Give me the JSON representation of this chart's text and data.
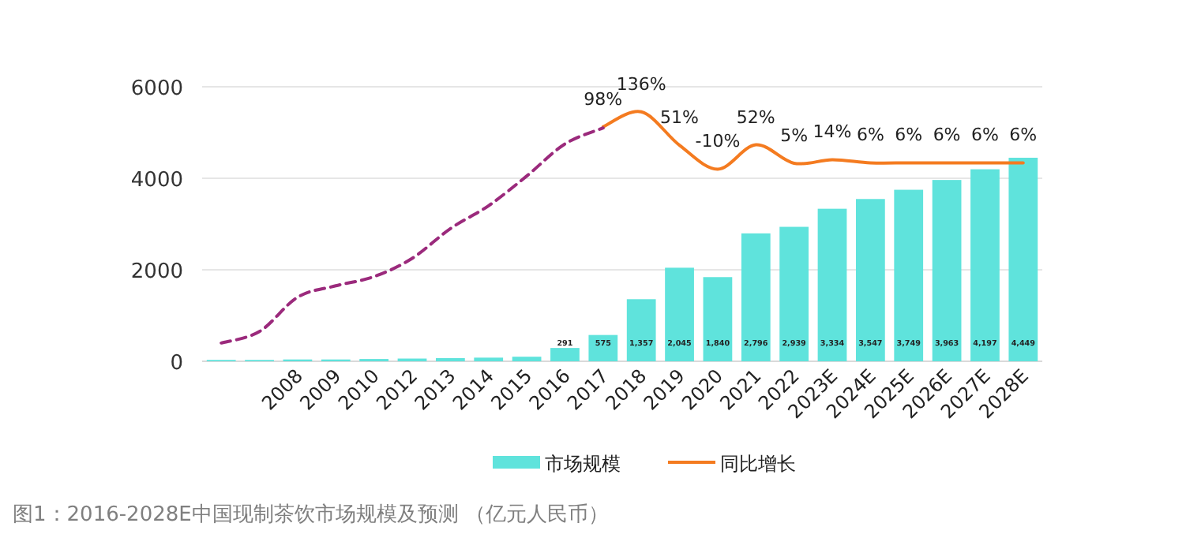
{
  "chart_data": {
    "type": "bar",
    "categories": [
      null,
      null,
      "2008",
      "2009",
      "2010",
      "2012",
      "2013",
      "2014",
      "2015",
      "2016",
      "2017",
      "2018",
      "2019",
      "2020",
      "2021",
      "2022",
      "2023E",
      "2024E",
      "2025E",
      "2026E",
      "2027E",
      "2028E"
    ],
    "ylim": [
      0,
      6000
    ],
    "yticks": [
      0,
      2000,
      4000,
      6000
    ],
    "y2lim": [
      -500,
      200
    ],
    "grid": "y",
    "legend": "bottom",
    "annotations": [
      "图1：2016-2028E中国现制茶饮市场规模及预测 （亿元人民币）"
    ],
    "series": [
      {
        "name": "市场规模",
        "color": "#5fe3dc",
        "values": [
          30,
          30,
          40,
          40,
          50,
          60,
          70,
          80,
          100,
          291,
          575,
          1357,
          2045,
          1840,
          2796,
          2939,
          3334,
          3547,
          3749,
          3963,
          4197,
          4449
        ],
        "value_labels": [
          null,
          null,
          null,
          null,
          null,
          null,
          null,
          null,
          null,
          "291",
          "575",
          "1,357",
          "2,045",
          "1,840",
          "2,796",
          "2,939",
          "3,334",
          "3,547",
          "3,749",
          "3,963",
          "4,197",
          "4,449"
        ]
      },
      {
        "type": "line",
        "name": "同比增长",
        "color": "#f47b20",
        "axis": "y2",
        "values": [
          null,
          null,
          null,
          null,
          null,
          null,
          null,
          null,
          null,
          null,
          98,
          136,
          51,
          -10,
          52,
          5,
          14,
          6,
          6,
          6,
          6,
          6
        ],
        "value_labels": [
          null,
          null,
          null,
          null,
          null,
          null,
          null,
          null,
          null,
          null,
          "98%",
          "136%",
          "51%",
          "-10%",
          "52%",
          "5%",
          "14%",
          "6%",
          "6%",
          "6%",
          "6%",
          "6%"
        ]
      },
      {
        "type": "line",
        "color": "#9b2a7c",
        "line_style": "dashed",
        "values": [
          400,
          650,
          1400,
          1650,
          1850,
          2250,
          2900,
          3400,
          4050,
          4750,
          5100,
          null,
          null,
          null,
          null,
          null,
          null,
          null,
          null,
          null,
          null,
          null
        ]
      }
    ]
  }
}
